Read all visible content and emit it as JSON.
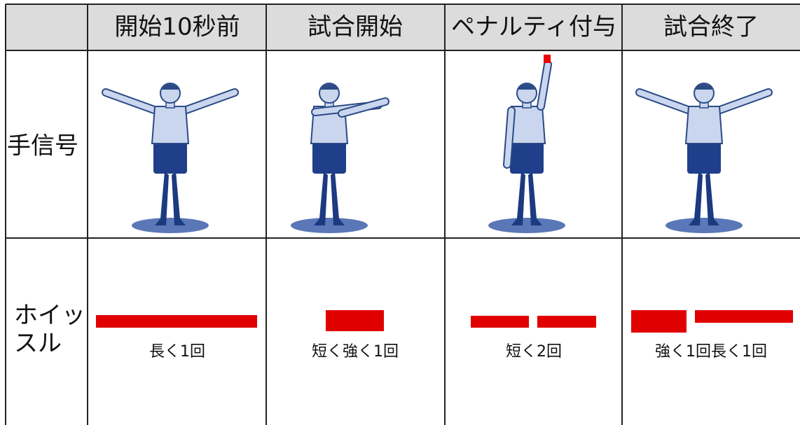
{
  "table": {
    "header": [
      "開始10秒前",
      "試合開始",
      "ペナルティ付与",
      "試合終了"
    ],
    "rows": [
      {
        "label": "手信号"
      },
      {
        "label_lines": [
          "ホイッ",
          "スル"
        ],
        "cells": [
          "長く1回",
          "短く強く1回",
          "短く2回",
          "強く1回長く1回"
        ]
      }
    ]
  }
}
